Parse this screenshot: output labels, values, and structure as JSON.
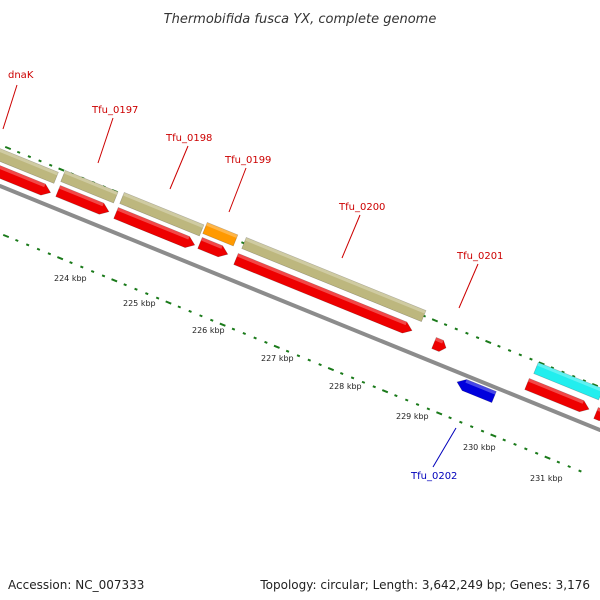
{
  "title": "Thermobifida fusca YX, complete genome",
  "colors": {
    "background": "#ffffff",
    "backbone": "#8c8c8c",
    "gene_forward": "#ee0000",
    "gene_reverse": "#0000dd",
    "label_forward": "#cc0000",
    "label_reverse": "#0000bb",
    "feature_tan": "#bdb77e",
    "feature_orange": "#ff9900",
    "feature_cyan": "#22eeee",
    "tick": "#1a7a1a"
  },
  "gene_labels": [
    {
      "id": "dnaK",
      "text": "dnaK",
      "strand": "forward"
    },
    {
      "id": "tfu0197",
      "text": "Tfu_0197",
      "strand": "forward"
    },
    {
      "id": "tfu0198",
      "text": "Tfu_0198",
      "strand": "forward"
    },
    {
      "id": "tfu0199",
      "text": "Tfu_0199",
      "strand": "forward"
    },
    {
      "id": "tfu0200",
      "text": "Tfu_0200",
      "strand": "forward"
    },
    {
      "id": "tfu0201",
      "text": "Tfu_0201",
      "strand": "forward"
    },
    {
      "id": "tfu0202",
      "text": "Tfu_0202",
      "strand": "reverse"
    }
  ],
  "scale_ticks": [
    "224 kbp",
    "225 kbp",
    "226 kbp",
    "227 kbp",
    "228 kbp",
    "229 kbp",
    "230 kbp",
    "231 kbp"
  ],
  "footer": {
    "accession": "Accession: NC_007333",
    "summary": "Topology: circular; Length: 3,642,249 bp; Genes: 3,176"
  }
}
